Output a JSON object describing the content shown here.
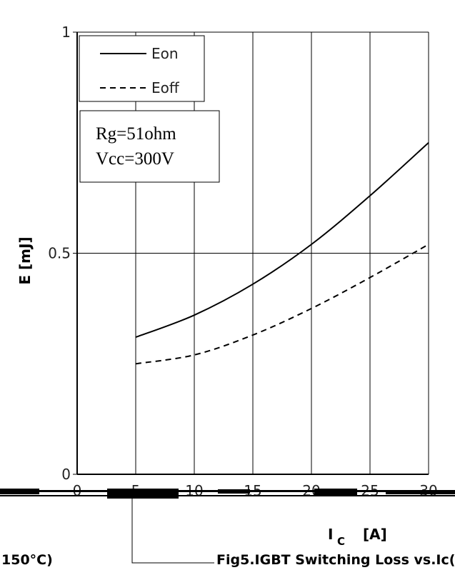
{
  "chart_data": {
    "type": "line",
    "xlabel_main": "I",
    "xlabel_sub": "C",
    "xlabel_unit": "[A]",
    "ylabel": "E  [mJ]",
    "xlim": [
      0,
      30
    ],
    "ylim": [
      0,
      1
    ],
    "x_ticks": [
      0,
      5,
      10,
      15,
      20,
      25,
      30
    ],
    "y_ticks": [
      {
        "value": 0,
        "label": "0"
      },
      {
        "value": 0.5,
        "label": "0.5"
      },
      {
        "value": 1,
        "label": "1"
      }
    ],
    "grid": true,
    "legend": {
      "placement": "top-left",
      "entries": [
        "Eon",
        "Eoff"
      ]
    },
    "series": [
      {
        "name": "Eon",
        "style": "solid",
        "color": "#000000",
        "x": [
          5,
          10,
          15,
          20,
          25,
          30
        ],
        "y": [
          0.31,
          0.36,
          0.43,
          0.52,
          0.63,
          0.75
        ]
      },
      {
        "name": "Eoff",
        "style": "dashed",
        "color": "#000000",
        "x": [
          5,
          10,
          15,
          20,
          25,
          30
        ],
        "y": [
          0.25,
          0.27,
          0.315,
          0.375,
          0.445,
          0.52
        ]
      }
    ],
    "annotation_lines": [
      "Rg=51ohm",
      "Vcc=300V"
    ],
    "caption_left": "150°C)",
    "caption_right": "Fig5.IGBT Switching Loss vs.Ic("
  }
}
